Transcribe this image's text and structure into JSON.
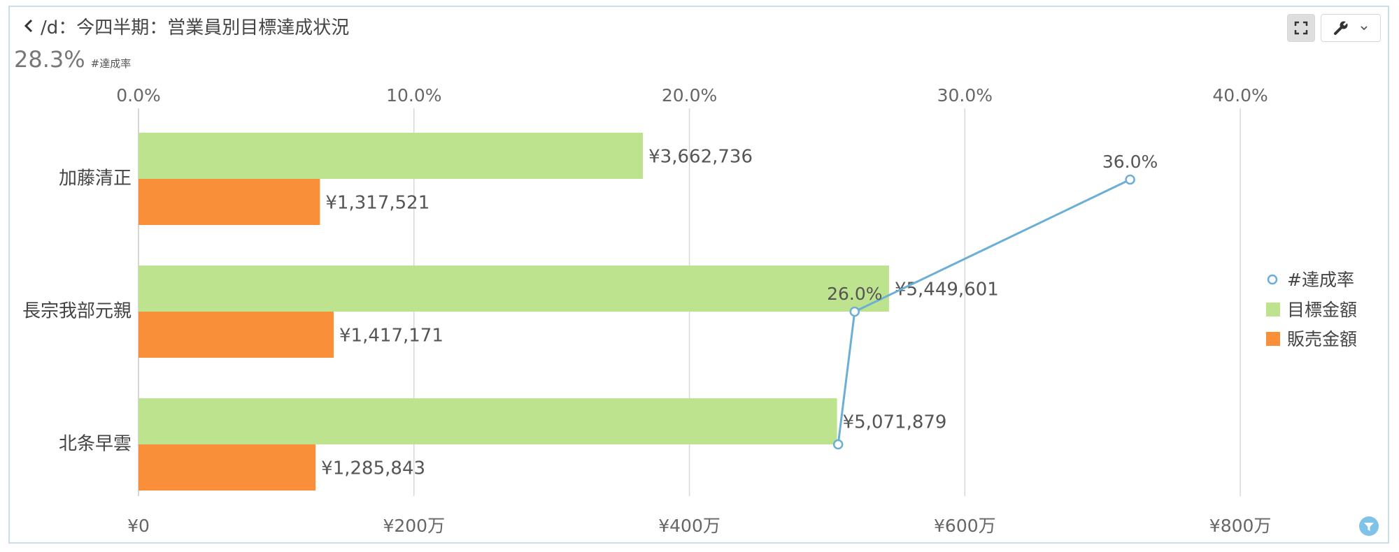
{
  "header": {
    "title": "/d：今四半期：営業員別目標達成状況",
    "back_icon": "chevron-left-icon"
  },
  "kpi": {
    "value": "28.3%",
    "label": "#達成率"
  },
  "toolbar": {
    "expand_icon": "expand-icon",
    "wrench_icon": "wrench-icon",
    "dropdown_icon": "chevron-down-icon"
  },
  "colors": {
    "target": "#bde38f",
    "sales": "#fa8f3a",
    "rate": "#6baed6",
    "grid": "#d8d8d8"
  },
  "chart_data": {
    "type": "bar",
    "orientation": "horizontal",
    "categories": [
      "加藤清正",
      "長宗我部元親",
      "北条早雲"
    ],
    "series": [
      {
        "name": "目標金額",
        "values": [
          3662736,
          5449601,
          5071879
        ],
        "labels": [
          "¥3,662,736",
          "¥5,449,601",
          "¥5,071,879"
        ]
      },
      {
        "name": "販売金額",
        "values": [
          1317521,
          1417171,
          1285843
        ],
        "labels": [
          "¥1,317,521",
          "¥1,417,171",
          "¥1,285,843"
        ]
      },
      {
        "name": "#達成率",
        "type": "line",
        "axis": "top",
        "values": [
          36.0,
          26.0,
          25.4
        ],
        "labels": [
          "36.0%",
          "26.0%",
          ""
        ]
      }
    ],
    "bottom_axis": {
      "range": [
        0,
        9000000
      ],
      "ticks": [
        0,
        2000000,
        4000000,
        6000000,
        8000000
      ],
      "tick_labels": [
        "¥0",
        "¥200万",
        "¥400万",
        "¥600万",
        "¥800万"
      ]
    },
    "top_axis": {
      "range": [
        0,
        45
      ],
      "ticks": [
        0,
        10,
        20,
        30,
        40
      ],
      "tick_labels": [
        "0.0%",
        "10.0%",
        "20.0%",
        "30.0%",
        "40.0%"
      ]
    },
    "legend": {
      "position": "right",
      "items": [
        "#達成率",
        "目標金額",
        "販売金額"
      ]
    },
    "grid": true
  }
}
